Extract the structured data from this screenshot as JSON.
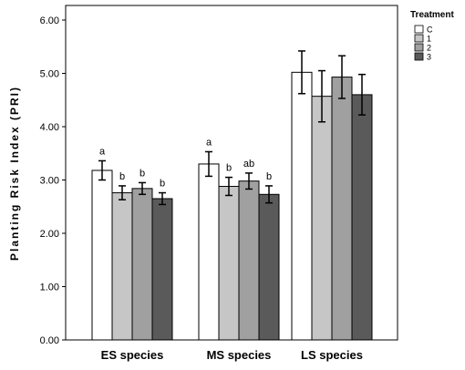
{
  "chart_data": {
    "type": "bar",
    "ylabel": "Planting Risk Index (PRI)",
    "xlabel": "",
    "ylim": [
      0,
      6
    ],
    "yticks": [
      "0.00",
      "1.00",
      "2.00",
      "3.00",
      "4.00",
      "5.00",
      "6.00"
    ],
    "categories": [
      "ES species",
      "MS species",
      "LS species"
    ],
    "legend_title": "Treatment",
    "legend_position": "top-right",
    "grid": false,
    "series": [
      {
        "name": "C",
        "color": "#ffffff",
        "values": [
          3.18,
          3.3,
          5.02
        ],
        "err": [
          0.18,
          0.23,
          0.4
        ],
        "labels": [
          "a",
          "a",
          ""
        ]
      },
      {
        "name": "1",
        "color": "#c6c6c6",
        "values": [
          2.76,
          2.88,
          4.57
        ],
        "err": [
          0.13,
          0.17,
          0.48
        ],
        "labels": [
          "b",
          "b",
          ""
        ]
      },
      {
        "name": "2",
        "color": "#a0a0a0",
        "values": [
          2.84,
          2.98,
          4.93
        ],
        "err": [
          0.11,
          0.15,
          0.4
        ],
        "labels": [
          "b",
          "ab",
          ""
        ]
      },
      {
        "name": "3",
        "color": "#5a5a5a",
        "values": [
          2.65,
          2.73,
          4.6
        ],
        "err": [
          0.11,
          0.16,
          0.38
        ],
        "labels": [
          "b",
          "b",
          ""
        ]
      }
    ]
  }
}
